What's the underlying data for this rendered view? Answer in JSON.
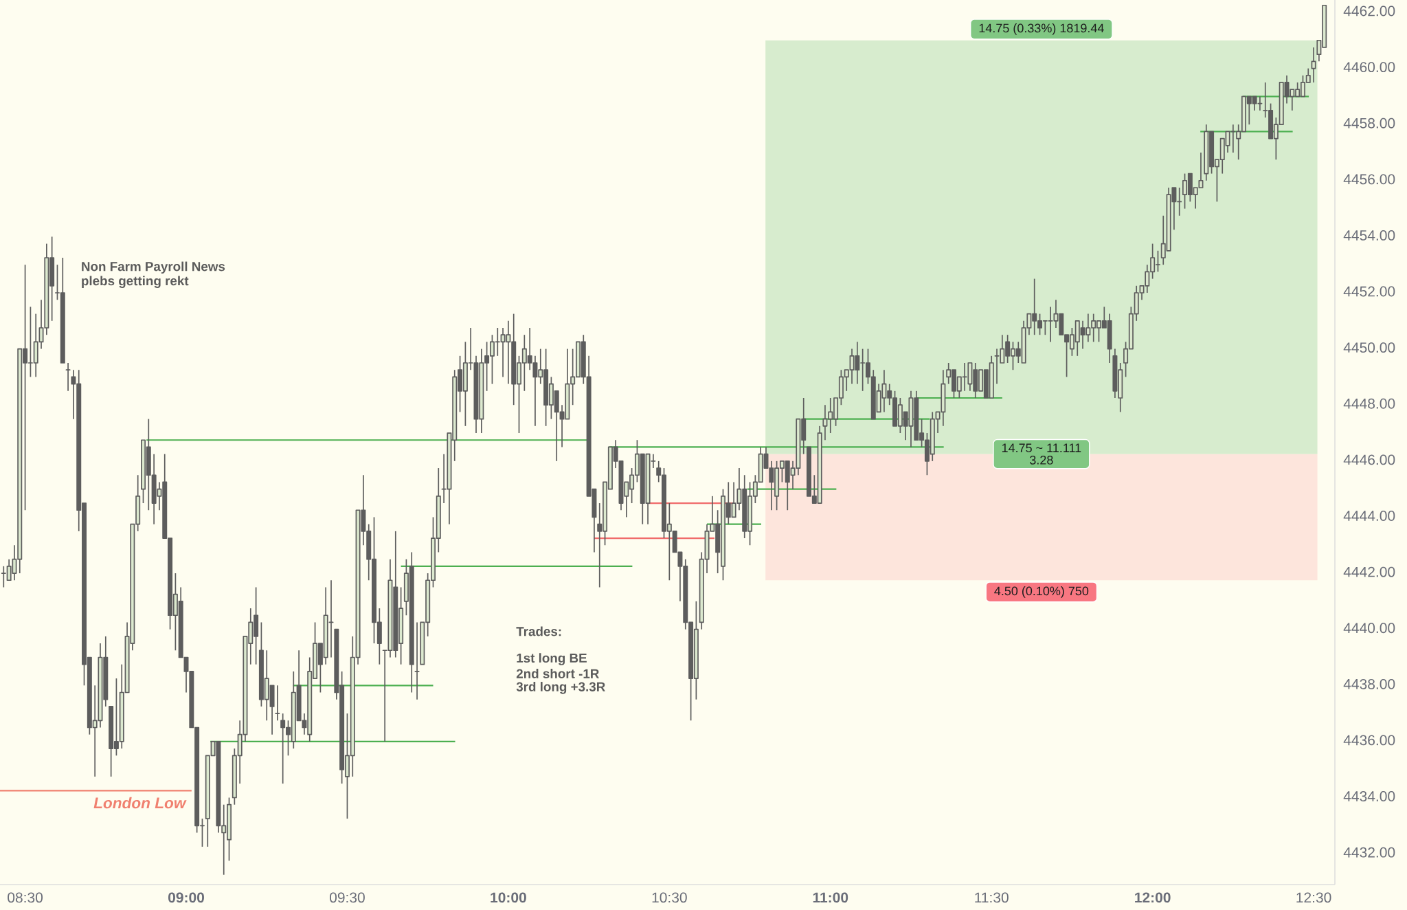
{
  "chart_data": {
    "type": "candlestick",
    "color": "#5d5d5d",
    "x": [
      8.4333,
      8.45,
      8.4667,
      8.4833,
      8.5,
      8.5167,
      8.5333,
      8.55,
      8.5667,
      8.5833,
      8.6,
      8.6167,
      8.6333,
      8.65,
      8.6667,
      8.6833,
      8.7,
      8.7167,
      8.7333,
      8.75,
      8.7667,
      8.7833,
      8.8,
      8.8167,
      8.8333,
      8.85,
      8.8667,
      8.8833,
      8.9,
      8.9167,
      8.9333,
      8.95,
      8.9667,
      8.9833,
      9,
      9.0167,
      9.0333,
      9.05,
      9.0667,
      9.0833,
      9.1,
      9.1167,
      9.1333,
      9.15,
      9.1667,
      9.1833,
      9.2,
      9.2167,
      9.2333,
      9.25,
      9.2667,
      9.2833,
      9.3,
      9.3167,
      9.3333,
      9.35,
      9.3667,
      9.3833,
      9.4,
      9.4167,
      9.4333,
      9.45,
      9.4667,
      9.4833,
      9.5,
      9.5167,
      9.5333,
      9.55,
      9.5667,
      9.5833,
      9.6,
      9.6167,
      9.6333,
      9.65,
      9.6667,
      9.6833,
      9.7,
      9.7167,
      9.7333,
      9.75,
      9.7667,
      9.7833,
      9.8,
      9.8167,
      9.8333,
      9.85,
      9.8667,
      9.8833,
      9.9,
      9.9167,
      9.9333,
      9.95,
      9.9667,
      9.9833,
      10,
      10.0167,
      10.0333,
      10.05,
      10.0667,
      10.0833,
      10.1,
      10.1167,
      10.1333,
      10.15,
      10.1667,
      10.1833,
      10.2,
      10.2167,
      10.2333,
      10.25,
      10.2667,
      10.2833,
      10.3,
      10.3167,
      10.3333,
      10.35,
      10.3667,
      10.3833,
      10.4,
      10.4167,
      10.4333,
      10.45,
      10.4667,
      10.4833,
      10.5,
      10.5167,
      10.5333,
      10.55,
      10.5667,
      10.5833,
      10.6,
      10.6167,
      10.6333,
      10.65,
      10.6667,
      10.6833,
      10.7,
      10.7167,
      10.7333,
      10.75,
      10.7667,
      10.7833,
      10.8,
      10.8167,
      10.8333,
      10.85,
      10.8667,
      10.8833,
      10.9,
      10.9167,
      10.9333,
      10.95,
      10.9667,
      10.9833,
      11,
      11.0167,
      11.0333,
      11.05,
      11.0667,
      11.0833,
      11.1,
      11.1167,
      11.1333,
      11.15,
      11.1667,
      11.1833,
      11.2,
      11.2167,
      11.2333,
      11.25,
      11.2667,
      11.2833,
      11.3,
      11.3167,
      11.3333,
      11.35,
      11.3667,
      11.3833,
      11.4,
      11.4167,
      11.4333,
      11.45,
      11.4667,
      11.4833,
      11.5,
      11.5167,
      11.5333,
      11.55,
      11.5667,
      11.5833,
      11.6,
      11.6167,
      11.6333,
      11.65,
      11.6667,
      11.6833,
      11.7,
      11.7167,
      11.7333,
      11.75,
      11.7667,
      11.7833,
      11.8,
      11.8167,
      11.8333,
      11.85,
      11.8667,
      11.8833,
      11.9,
      11.9167,
      11.9333,
      11.95,
      11.9667,
      11.9833,
      12,
      12.0167,
      12.0333,
      12.05,
      12.0667,
      12.0833,
      12.1,
      12.1167,
      12.1333,
      12.15,
      12.1667,
      12.1833,
      12.2,
      12.2167,
      12.2333,
      12.25,
      12.2667,
      12.2833,
      12.3,
      12.3167,
      12.3333,
      12.35,
      12.3667,
      12.3833,
      12.4,
      12.4167,
      12.4333,
      12.45,
      12.4667,
      12.4833,
      12.5,
      12.5167,
      12.5333
    ],
    "ohlc": [
      [
        4442,
        4442.25,
        4441.5,
        4442
      ],
      [
        4441.75,
        4442.5,
        4441.75,
        4442.25
      ],
      [
        4442,
        4443,
        4441.75,
        4442.5
      ],
      [
        4442.5,
        4450,
        4442,
        4450
      ],
      [
        4450,
        4453,
        4444.25,
        4449.5
      ],
      [
        4449.5,
        4451.5,
        4449,
        4449.5
      ],
      [
        4449.5,
        4451.25,
        4449,
        4450.25
      ],
      [
        4450.25,
        4451.75,
        4450,
        4450.75
      ],
      [
        4450.75,
        4453.75,
        4450.5,
        4453.25
      ],
      [
        4453.25,
        4454,
        4451,
        4452.25
      ],
      [
        4452,
        4453,
        4451.75,
        4452
      ],
      [
        4452,
        4453.25,
        4449.5,
        4449.5
      ],
      [
        4449.25,
        4449.5,
        4448.5,
        4449.25
      ],
      [
        4449,
        4449.25,
        4447.5,
        4448.75
      ],
      [
        4448.75,
        4449.25,
        4443.5,
        4444.25
      ],
      [
        4444.5,
        4444.5,
        4438,
        4438.75
      ],
      [
        4439,
        4439,
        4436.25,
        4436.5
      ],
      [
        4436.5,
        4438,
        4434.75,
        4436.75
      ],
      [
        4436.75,
        4439.5,
        4436.5,
        4439
      ],
      [
        4439,
        4439.75,
        4437.25,
        4437.5
      ],
      [
        4437.25,
        4437.25,
        4434.75,
        4435.75
      ],
      [
        4436,
        4438.25,
        4435.5,
        4435.75
      ],
      [
        4436,
        4438.75,
        4435.75,
        4437.75
      ],
      [
        4437.75,
        4440.25,
        4437.75,
        4439.75
      ],
      [
        4439.5,
        4443.75,
        4439.25,
        4443.75
      ],
      [
        4443.75,
        4445.5,
        4443.5,
        4444.75
      ],
      [
        4445,
        4446.75,
        4444.5,
        4446.75
      ],
      [
        4446.5,
        4447.5,
        4444.25,
        4445.5
      ],
      [
        4445.5,
        4446.25,
        4443.75,
        4444.5
      ],
      [
        4444.75,
        4445.25,
        4444.25,
        4445
      ],
      [
        4445.25,
        4446.25,
        4443.25,
        4443.25
      ],
      [
        4443.25,
        4443.25,
        4440,
        4440.5
      ],
      [
        4440.5,
        4442,
        4439.25,
        4441.25
      ],
      [
        4441,
        4441.5,
        4439,
        4439
      ],
      [
        4439,
        4439,
        4437.75,
        4438.5
      ],
      [
        4438.5,
        4438.5,
        4436.5,
        4436.5
      ],
      [
        4436.5,
        4436.5,
        4432.75,
        4433
      ],
      [
        4433,
        4433.25,
        4432.25,
        4433
      ],
      [
        4433.25,
        4435.5,
        4432.25,
        4435.5
      ],
      [
        4435.5,
        4436,
        4435.5,
        4436
      ],
      [
        4436,
        4436,
        4432.75,
        4433
      ],
      [
        4432.75,
        4433.75,
        4431.25,
        4433
      ],
      [
        4432.5,
        4434,
        4431.75,
        4433.75
      ],
      [
        4434,
        4435.75,
        4433.75,
        4435.5
      ],
      [
        4435.5,
        4436.75,
        4434.5,
        4436.25
      ],
      [
        4436.25,
        4439.75,
        4436,
        4439.75
      ],
      [
        4439.5,
        4440.75,
        4438.75,
        4440.25
      ],
      [
        4440.5,
        4441.5,
        4438.75,
        4439.75
      ],
      [
        4439.25,
        4440.25,
        4437.25,
        4437.5
      ],
      [
        4437.5,
        4439.25,
        4436.75,
        4438.25
      ],
      [
        4438,
        4438,
        4436.25,
        4437.25
      ],
      [
        4437,
        4438,
        4436.75,
        4437
      ],
      [
        4436.75,
        4437,
        4434.5,
        4436.5
      ],
      [
        4436.5,
        4436.75,
        4435.5,
        4436.25
      ],
      [
        4436,
        4438.5,
        4435.75,
        4437.75
      ],
      [
        4438,
        4439.25,
        4436.75,
        4436.75
      ],
      [
        4436.75,
        4437,
        4436.25,
        4436.5
      ],
      [
        4436.25,
        4439,
        4436,
        4438.5
      ],
      [
        4438.25,
        4440.25,
        4438.25,
        4439.5
      ],
      [
        4439.5,
        4439.5,
        4437.75,
        4438.75
      ],
      [
        4439,
        4441.5,
        4438.75,
        4440.5
      ],
      [
        4440.25,
        4441.75,
        4439,
        4440.25
      ],
      [
        4440,
        4440,
        4437.5,
        4437.75
      ],
      [
        4438,
        4438.5,
        4434.5,
        4435
      ],
      [
        4434.75,
        4437,
        4433.25,
        4435.5
      ],
      [
        4435.5,
        4439.75,
        4434.75,
        4439
      ],
      [
        4439,
        4444.25,
        4438.75,
        4444.25
      ],
      [
        4444.25,
        4445.5,
        4443,
        4443.5
      ],
      [
        4443.5,
        4443.75,
        4441.75,
        4442.5
      ],
      [
        4442.5,
        4444,
        4439.5,
        4440.25
      ],
      [
        4440.25,
        4440.75,
        4438.75,
        4439.5
      ],
      [
        4439.25,
        4439.25,
        4436,
        4439.25
      ],
      [
        4439.25,
        4442.5,
        4439,
        4441.75
      ],
      [
        4441.5,
        4443.5,
        4439,
        4439.25
      ],
      [
        4439.5,
        4441.5,
        4438.75,
        4440.75
      ],
      [
        4441,
        4442.5,
        4440.5,
        4442
      ],
      [
        4442.25,
        4442.75,
        4437.75,
        4438.75
      ],
      [
        4438.5,
        4440.25,
        4437.5,
        4438.5
      ],
      [
        4438.75,
        4440.25,
        4438.75,
        4440.25
      ],
      [
        4440.25,
        4442,
        4439.75,
        4441.75
      ],
      [
        4441.75,
        4444,
        4441.5,
        4443.25
      ],
      [
        4443.25,
        4445.75,
        4442.75,
        4444.75
      ],
      [
        4445,
        4446.25,
        4444.5,
        4445
      ],
      [
        4445,
        4447,
        4443.75,
        4447
      ],
      [
        4446.75,
        4449.25,
        4446,
        4449
      ],
      [
        4449.25,
        4449.75,
        4447.75,
        4448.5
      ],
      [
        4448.5,
        4450.25,
        4447.25,
        4449.5
      ],
      [
        4449.5,
        4450.75,
        4449.25,
        4449.5
      ],
      [
        4449.5,
        4449.75,
        4447,
        4447.5
      ],
      [
        4447.5,
        4450,
        4447,
        4449.5
      ],
      [
        4449.75,
        4450.25,
        4448.5,
        4449.5
      ],
      [
        4449.75,
        4450.5,
        4448.75,
        4450.25
      ],
      [
        4450.25,
        4450.75,
        4449.75,
        4450.25
      ],
      [
        4450.25,
        4450.75,
        4449,
        4450.5
      ],
      [
        4450.25,
        4451,
        4448.75,
        4450.5
      ],
      [
        4450.25,
        4451.25,
        4448,
        4448.75
      ],
      [
        4448.75,
        4449.75,
        4447,
        4449.5
      ],
      [
        4449.5,
        4450.5,
        4448.5,
        4450
      ],
      [
        4449.75,
        4450.75,
        4449.25,
        4449.5
      ],
      [
        4449.5,
        4449.75,
        4447.25,
        4449
      ],
      [
        4449,
        4450,
        4448.75,
        4449.25
      ],
      [
        4449.25,
        4450,
        4447.25,
        4448
      ],
      [
        4448,
        4449,
        4447.5,
        4448.75
      ],
      [
        4448.5,
        4448.5,
        4446,
        4447.75
      ],
      [
        4447.75,
        4448,
        4446.5,
        4447.5
      ],
      [
        4447.5,
        4450,
        4447.5,
        4448.75
      ],
      [
        4448.75,
        4450,
        4448,
        4449
      ],
      [
        4449,
        4450.25,
        4449,
        4450.25
      ],
      [
        4450.25,
        4450.5,
        4448.75,
        4449
      ],
      [
        4449,
        4449.75,
        4444.75,
        4444.75
      ],
      [
        4445,
        4445,
        4442.75,
        4444
      ],
      [
        4443.75,
        4444.5,
        4441.5,
        4443.5
      ],
      [
        4443.5,
        4445.25,
        4443,
        4445.25
      ],
      [
        4445,
        4446.5,
        4445,
        4446.5
      ],
      [
        4446.5,
        4446.75,
        4445.75,
        4446
      ],
      [
        4446,
        4446,
        4444.25,
        4444.5
      ],
      [
        4444.75,
        4445.25,
        4444,
        4445.25
      ],
      [
        4445,
        4445.75,
        4444.5,
        4445.5
      ],
      [
        4445.5,
        4446.75,
        4445.25,
        4446.25
      ],
      [
        4446.25,
        4446.25,
        4443.75,
        4444.5
      ],
      [
        4444.5,
        4446.25,
        4443.75,
        4446.25
      ],
      [
        4446,
        4446.25,
        4445.75,
        4446
      ],
      [
        4445.75,
        4446,
        4445.25,
        4445.5
      ],
      [
        4445.5,
        4445.75,
        4443.25,
        4443.5
      ],
      [
        4443.5,
        4444.5,
        4441.75,
        4443.75
      ],
      [
        4443.5,
        4443.5,
        4442.75,
        4442.75
      ],
      [
        4442.75,
        4442.75,
        4441,
        4442.25
      ],
      [
        4442.25,
        4442.5,
        4440,
        4440.25
      ],
      [
        4440.25,
        4440.25,
        4436.75,
        4438.25
      ],
      [
        4438.25,
        4441,
        4437.5,
        4440
      ],
      [
        4440.25,
        4442.75,
        4440,
        4442.5
      ],
      [
        4442.5,
        4443.75,
        4442,
        4443.5
      ],
      [
        4443.5,
        4444.75,
        4443.5,
        4443.75
      ],
      [
        4443.75,
        4444.25,
        4442,
        4442.75
      ],
      [
        4442.25,
        4445,
        4441.75,
        4444.75
      ],
      [
        4444.5,
        4445.25,
        4443.75,
        4444
      ],
      [
        4444,
        4445.25,
        4444,
        4444.5
      ],
      [
        4444.5,
        4445.75,
        4444.25,
        4445
      ],
      [
        4445,
        4445.5,
        4443.25,
        4443.5
      ],
      [
        4443.5,
        4445.25,
        4443,
        4444.75
      ],
      [
        4444.75,
        4445.5,
        4444.5,
        4445.25
      ],
      [
        4445.25,
        4446.5,
        4445.25,
        4446.25
      ],
      [
        4446.25,
        4446.5,
        4445.75,
        4445.75
      ],
      [
        4445.75,
        4446,
        4444.25,
        4445.25
      ],
      [
        4444.75,
        4446,
        4444.25,
        4445.75
      ],
      [
        4445.75,
        4446,
        4445.25,
        4446
      ],
      [
        4446,
        4446,
        4444.25,
        4445.25
      ],
      [
        4445.5,
        4446,
        4445,
        4445.75
      ],
      [
        4445.75,
        4447.5,
        4445.5,
        4447.5
      ],
      [
        4447.5,
        4448.25,
        4446.25,
        4446.75
      ],
      [
        4446.5,
        4446.5,
        4444.75,
        4444.75
      ],
      [
        4444.75,
        4445.5,
        4444.5,
        4444.5
      ],
      [
        4444.5,
        4447.25,
        4444.5,
        4447
      ],
      [
        4447.25,
        4448,
        4446.75,
        4447.5
      ],
      [
        4447.5,
        4448.25,
        4447,
        4447.75
      ],
      [
        4447.5,
        4448.25,
        4447.25,
        4448.25
      ],
      [
        4448.25,
        4449.25,
        4448,
        4449
      ],
      [
        4449,
        4449.25,
        4448.5,
        4449.25
      ],
      [
        4449.25,
        4450,
        4448.75,
        4449.75
      ],
      [
        4449.75,
        4450.25,
        4448.75,
        4449.25
      ],
      [
        4449.5,
        4450,
        4448.5,
        4449.5
      ],
      [
        4449.5,
        4450,
        4448.75,
        4449
      ],
      [
        4449,
        4449.25,
        4447.5,
        4447.5
      ],
      [
        4447.75,
        4448.75,
        4447.75,
        4448.5
      ],
      [
        4448.25,
        4449.25,
        4447.75,
        4448.75
      ],
      [
        4448.5,
        4448.75,
        4448,
        4448.25
      ],
      [
        4448.25,
        4448.5,
        4447.25,
        4447.25
      ],
      [
        4447.25,
        4448.25,
        4447,
        4448
      ],
      [
        4447.75,
        4447.75,
        4446.75,
        4447.25
      ],
      [
        4447.25,
        4448.5,
        4446.5,
        4448.25
      ],
      [
        4448.25,
        4448.5,
        4446.75,
        4446.75
      ],
      [
        4447,
        4447.5,
        4446.5,
        4446.75
      ],
      [
        4446.75,
        4447,
        4445.5,
        4446
      ],
      [
        4446.25,
        4447.75,
        4446,
        4447.5
      ],
      [
        4447.5,
        4447.75,
        4447,
        4447.75
      ],
      [
        4447.75,
        4449.25,
        4447.25,
        4448.75
      ],
      [
        4449,
        4449.5,
        4448.75,
        4449.25
      ],
      [
        4449.25,
        4449.25,
        4448.25,
        4448.5
      ],
      [
        4448.5,
        4449,
        4448.25,
        4449
      ],
      [
        4449,
        4449.5,
        4448.5,
        4449
      ],
      [
        4448.75,
        4449.5,
        4448.5,
        4449.5
      ],
      [
        4449.25,
        4449.5,
        4448.25,
        4448.5
      ],
      [
        4448.5,
        4449.25,
        4448.5,
        4449.25
      ],
      [
        4449.25,
        4449.25,
        4448.25,
        4448.25
      ],
      [
        4448.25,
        4449.75,
        4448.25,
        4449.5
      ],
      [
        4449.75,
        4450,
        4448.75,
        4449.75
      ],
      [
        4449.5,
        4450.5,
        4449.5,
        4450
      ],
      [
        4450.25,
        4450.5,
        4449.5,
        4449.75
      ],
      [
        4449.75,
        4450.25,
        4449.25,
        4450
      ],
      [
        4450,
        4450.25,
        4449.5,
        4449.75
      ],
      [
        4449.5,
        4451,
        4449.5,
        4450.75
      ],
      [
        4450.75,
        4451.25,
        4450.5,
        4451.25
      ],
      [
        4451.25,
        4452.5,
        4450.5,
        4451
      ],
      [
        4451,
        4451.25,
        4450.5,
        4450.75
      ],
      [
        4451,
        4451,
        4450.5,
        4451
      ],
      [
        4451,
        4451.5,
        4450.25,
        4451
      ],
      [
        4451,
        4451.75,
        4450.75,
        4451.25
      ],
      [
        4451.25,
        4451.25,
        4450.5,
        4450.5
      ],
      [
        4450.5,
        4450.5,
        4449,
        4450.25
      ],
      [
        4450,
        4450.75,
        4449.75,
        4450.5
      ],
      [
        4450.25,
        4451,
        4449.75,
        4451
      ],
      [
        4450.75,
        4451,
        4450,
        4450.5
      ],
      [
        4450.5,
        4451.25,
        4450.25,
        4450.75
      ],
      [
        4450.75,
        4451.25,
        4450.25,
        4451
      ],
      [
        4450.75,
        4451,
        4450.25,
        4451
      ],
      [
        4451,
        4451.5,
        4450.75,
        4450.75
      ],
      [
        4451,
        4451.25,
        4449.5,
        4450
      ],
      [
        4449.75,
        4450,
        4448.25,
        4448.5
      ],
      [
        4448.25,
        4449.5,
        4447.75,
        4449.25
      ],
      [
        4449.5,
        4450.25,
        4449,
        4450
      ],
      [
        4450,
        4451.5,
        4450,
        4451.25
      ],
      [
        4451.25,
        4452.25,
        4451,
        4452
      ],
      [
        4452,
        4452.25,
        4451.75,
        4452.25
      ],
      [
        4452.25,
        4453,
        4452,
        4452.75
      ],
      [
        4452.75,
        4453.75,
        4452.5,
        4453.25
      ],
      [
        4453,
        4453.5,
        4452.75,
        4453
      ],
      [
        4453.25,
        4454.75,
        4453,
        4453.75
      ],
      [
        4453.5,
        4455.75,
        4453.5,
        4455.5
      ],
      [
        4455.75,
        4455.75,
        4454.25,
        4455.25
      ],
      [
        4455.25,
        4455.75,
        4454.75,
        4455.25
      ],
      [
        4455.5,
        4456.25,
        4455,
        4456
      ],
      [
        4456.25,
        4456.25,
        4455.25,
        4455.5
      ],
      [
        4455.5,
        4455.75,
        4455,
        4455.75
      ],
      [
        4455.75,
        4457,
        4455.75,
        4456
      ],
      [
        4456.25,
        4458,
        4456,
        4457.75
      ],
      [
        4457.75,
        4457.75,
        4456.25,
        4456.5
      ],
      [
        4456.5,
        4456.75,
        4455.25,
        4456.75
      ],
      [
        4456.75,
        4457.5,
        4456.25,
        4457.5
      ],
      [
        4457.25,
        4457.75,
        4457,
        4457.75
      ],
      [
        4457.75,
        4458,
        4457,
        4457.75
      ],
      [
        4457.5,
        4458,
        4456.75,
        4457.75
      ],
      [
        4457.75,
        4459,
        4457.75,
        4459
      ],
      [
        4459,
        4459,
        4458,
        4458.75
      ],
      [
        4459,
        4459,
        4458.5,
        4458.75
      ],
      [
        4458.75,
        4459,
        4458.5,
        4458.75
      ],
      [
        4458.5,
        4459.5,
        4458.25,
        4458.5
      ],
      [
        4458.5,
        4458.75,
        4457.5,
        4457.5
      ],
      [
        4457.5,
        4458.25,
        4456.75,
        4458
      ],
      [
        4458,
        4459.5,
        4458,
        4459.5
      ],
      [
        4459.5,
        4459.75,
        4458.75,
        4459
      ],
      [
        4459,
        4459.25,
        4458.5,
        4459.25
      ],
      [
        4459,
        4459.5,
        4459,
        4459.25
      ],
      [
        4459,
        4459.75,
        4459,
        4459.5
      ],
      [
        4459.5,
        4460,
        4459.5,
        4459.75
      ],
      [
        4460,
        4460.75,
        4459.5,
        4460.25
      ],
      [
        4460.5,
        4461,
        4460.25,
        4461
      ],
      [
        4460.75,
        4462.25,
        4460.75,
        4462.25
      ]
    ],
    "series": [
      {
        "type": "area",
        "x": [
          10.7983,
          12.5117
        ],
        "values": [
          null,
          null
        ],
        "lower": [
          4446.25,
          4446.25
        ],
        "upper": [
          4461,
          4461
        ],
        "color": "#d7ecce"
      },
      {
        "type": "area",
        "x": [
          10.7983,
          12.5117
        ],
        "values": [
          null,
          null
        ],
        "lower": [
          4441.75,
          4441.75
        ],
        "upper": [
          4446.25,
          4446.25
        ],
        "color": "#fde5dc"
      },
      {
        "type": "line",
        "name": "London Low",
        "x": [
          8.422,
          9.0167
        ],
        "values": [
          4434.25,
          4434.25
        ],
        "color": "#f0806f"
      },
      {
        "type": "line",
        "x": [
          8.8767,
          10.245
        ],
        "values": [
          4446.75,
          4446.75
        ],
        "color": "#4caf50"
      },
      {
        "type": "line",
        "x": [
          9.075,
          9.835
        ],
        "values": [
          4436,
          4436
        ],
        "color": "#4caf50"
      },
      {
        "type": "line",
        "x": [
          9.3317,
          9.7667
        ],
        "values": [
          4438,
          4438
        ],
        "color": "#4caf50"
      },
      {
        "type": "line",
        "x": [
          9.6667,
          10.385
        ],
        "values": [
          4442.25,
          4442.25
        ],
        "color": "#4caf50"
      },
      {
        "type": "line",
        "x": [
          10.265,
          10.64
        ],
        "values": [
          4443.25,
          4443.25
        ],
        "color": "#f06b6b"
      },
      {
        "type": "line",
        "x": [
          10.4333,
          10.7
        ],
        "values": [
          4444.5,
          4444.5
        ],
        "color": "#f06b6b"
      },
      {
        "type": "line",
        "x": [
          10.3133,
          11.3517
        ],
        "values": [
          4446.5,
          4446.5
        ],
        "color": "#4caf50"
      },
      {
        "type": "line",
        "x": [
          10.6167,
          10.785
        ],
        "values": [
          4443.75,
          4443.75
        ],
        "color": "#4caf50"
      },
      {
        "type": "line",
        "x": [
          10.7417,
          11.0183
        ],
        "values": [
          4445,
          4445
        ],
        "color": "#4caf50"
      },
      {
        "type": "line",
        "x": [
          10.915,
          11.3083
        ],
        "values": [
          4447.5,
          4447.5
        ],
        "color": "#4caf50"
      },
      {
        "type": "line",
        "x": [
          11.265,
          11.5333
        ],
        "values": [
          4448.25,
          4448.25
        ],
        "color": "#4caf50"
      },
      {
        "type": "line",
        "x": [
          12.1483,
          12.435
        ],
        "values": [
          4457.75,
          4457.75
        ],
        "color": "#4caf50"
      },
      {
        "type": "line",
        "x": [
          12.28,
          12.485
        ],
        "values": [
          4459,
          4459
        ],
        "color": "#4caf50"
      }
    ],
    "annotations": [
      "Non Farm Payroll News",
      "plebs getting rekt",
      "Trades:",
      "1st long BE",
      "2nd short -1R",
      "3rd long +3.3R",
      {
        "text": "14.75 (0.33%) 1819.44",
        "y": 4461
      },
      {
        "text": "14.75 ~ 11.111",
        "y": 4446.25
      },
      {
        "text": "3.28",
        "y": 4446.25
      },
      {
        "text": "4.50 (0.10%) 750",
        "y": 4441.75
      }
    ],
    "xlim": [
      8.422,
      12.566
    ],
    "ylim": [
      4430.9,
      4462.44
    ],
    "xticks": [
      {
        "value": 8.5,
        "label": "08:30"
      },
      {
        "value": 9,
        "label": "09:00"
      },
      {
        "value": 9.5,
        "label": "09:30"
      },
      {
        "value": 10,
        "label": "10:00"
      },
      {
        "value": 10.5,
        "label": "10:30"
      },
      {
        "value": 11,
        "label": "11:00"
      },
      {
        "value": 11.5,
        "label": "11:30"
      },
      {
        "value": 12,
        "label": "12:00"
      },
      {
        "value": 12.5,
        "label": "12:30"
      }
    ],
    "yticks": [
      {
        "value": 4432,
        "label": "4432.00"
      },
      {
        "value": 4434,
        "label": "4434.00"
      },
      {
        "value": 4436,
        "label": "4436.00"
      },
      {
        "value": 4438,
        "label": "4438.00"
      },
      {
        "value": 4440,
        "label": "4440.00"
      },
      {
        "value": 4442,
        "label": "4442.00"
      },
      {
        "value": 4444,
        "label": "4444.00"
      },
      {
        "value": 4446,
        "label": "4446.00"
      },
      {
        "value": 4448,
        "label": "4448.00"
      },
      {
        "value": 4450,
        "label": "4450.00"
      },
      {
        "value": 4452,
        "label": "4452.00"
      },
      {
        "value": 4454,
        "label": "4454.00"
      },
      {
        "value": 4456,
        "label": "4456.00"
      },
      {
        "value": 4458,
        "label": "4458.00"
      },
      {
        "value": 4460,
        "label": "4460.00"
      },
      {
        "value": 4462,
        "label": "4462.00"
      }
    ]
  }
}
